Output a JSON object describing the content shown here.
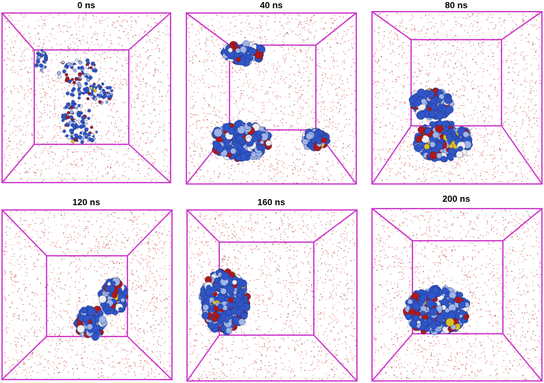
{
  "figure": {
    "frames": [
      {
        "id": "f1",
        "label": "0 ns"
      },
      {
        "id": "f2",
        "label": "40 ns"
      },
      {
        "id": "f3",
        "label": "80 ns"
      },
      {
        "id": "f4",
        "label": "120 ns"
      },
      {
        "id": "f5",
        "label": "160 ns"
      },
      {
        "id": "f6",
        "label": "200 ns"
      }
    ],
    "colors": {
      "box_edge": "#cc33cc",
      "water": "#d84040",
      "water_dark": "#7a2020",
      "protein_blue": "#2f55c8",
      "protein_light": "#9fb4e8",
      "protein_red": "#b01818",
      "protein_yellow": "#e0c020",
      "protein_white": "#f0f0f0"
    }
  }
}
